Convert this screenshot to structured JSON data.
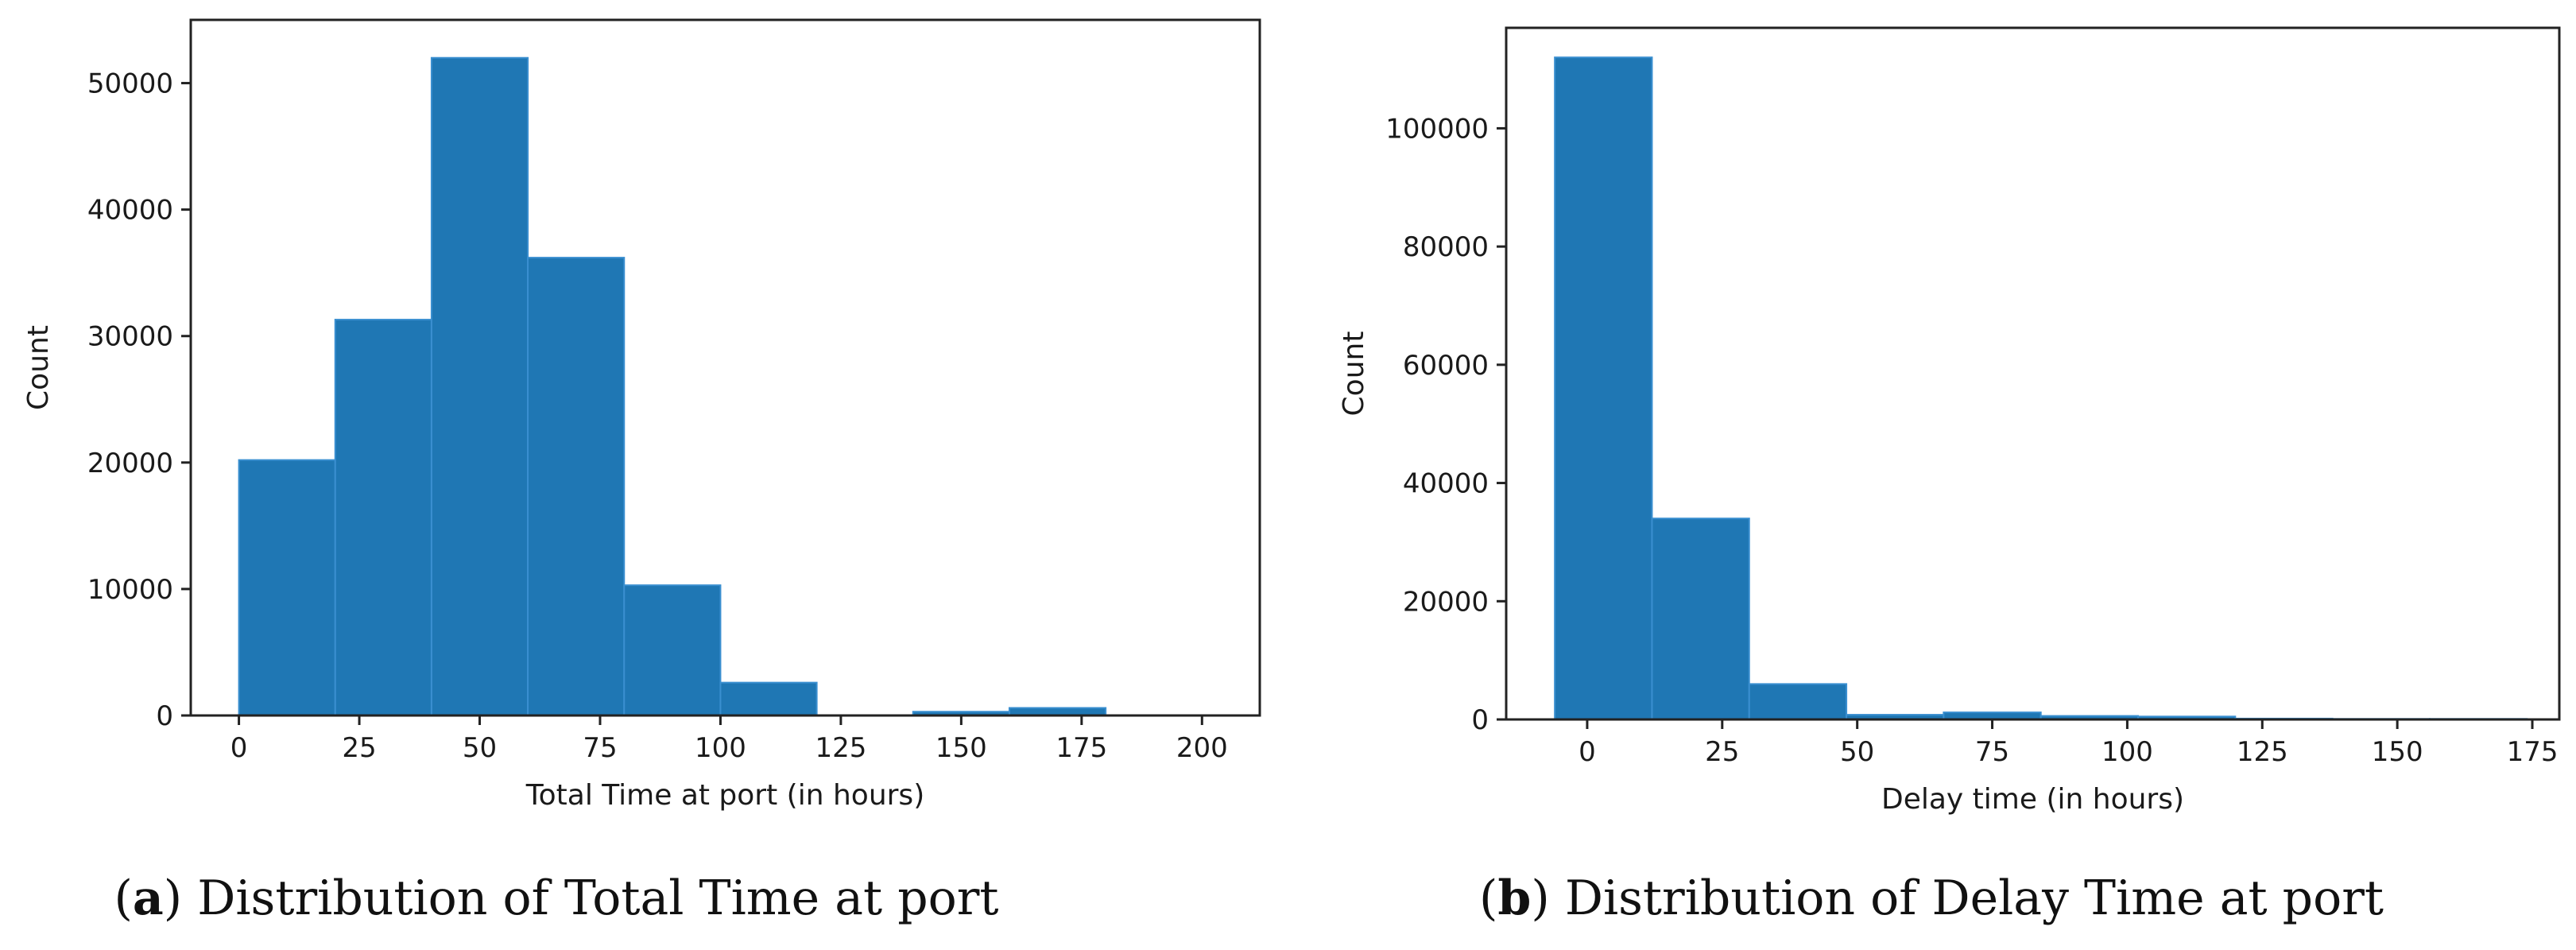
{
  "charts": [
    {
      "caption": {
        "prefix": "(",
        "letter": "a",
        "text": ") Distribution of Total Time at port"
      }
    },
    {
      "caption": {
        "prefix": "(",
        "letter": "b",
        "text": ") Distribution of Delay Time at port"
      }
    }
  ],
  "chart_data": [
    {
      "type": "bar",
      "subtype": "histogram",
      "xlabel": "Total Time at port (in hours)",
      "ylabel": "Count",
      "xlim": [
        -10,
        212
      ],
      "ylim": [
        0,
        55000
      ],
      "xticks": [
        0,
        25,
        50,
        75,
        100,
        125,
        150,
        175,
        200
      ],
      "yticks": [
        0,
        10000,
        20000,
        30000,
        40000,
        50000
      ],
      "bar_color": "#1f77b4",
      "bins": [
        {
          "x0": 0,
          "x1": 20,
          "count": 20200
        },
        {
          "x0": 20,
          "x1": 40,
          "count": 31300
        },
        {
          "x0": 40,
          "x1": 60,
          "count": 52000
        },
        {
          "x0": 60,
          "x1": 80,
          "count": 36200
        },
        {
          "x0": 80,
          "x1": 100,
          "count": 10300
        },
        {
          "x0": 100,
          "x1": 120,
          "count": 2600
        },
        {
          "x0": 120,
          "x1": 140,
          "count": 0
        },
        {
          "x0": 140,
          "x1": 160,
          "count": 300
        },
        {
          "x0": 160,
          "x1": 180,
          "count": 600
        },
        {
          "x0": 180,
          "x1": 200,
          "count": 0
        }
      ]
    },
    {
      "type": "bar",
      "subtype": "histogram",
      "xlabel": "Delay time (in hours)",
      "ylabel": "Count",
      "xlim": [
        -15,
        180
      ],
      "ylim": [
        0,
        117000
      ],
      "xticks": [
        0,
        25,
        50,
        75,
        100,
        125,
        150,
        175
      ],
      "yticks": [
        0,
        20000,
        40000,
        60000,
        80000,
        100000
      ],
      "bar_color": "#1f77b4",
      "bins": [
        {
          "x0": -6,
          "x1": 12,
          "count": 112000
        },
        {
          "x0": 12,
          "x1": 30,
          "count": 34000
        },
        {
          "x0": 30,
          "x1": 48,
          "count": 6000
        },
        {
          "x0": 48,
          "x1": 66,
          "count": 800
        },
        {
          "x0": 66,
          "x1": 84,
          "count": 1200
        },
        {
          "x0": 84,
          "x1": 102,
          "count": 600
        },
        {
          "x0": 102,
          "x1": 120,
          "count": 500
        },
        {
          "x0": 120,
          "x1": 138,
          "count": 150
        },
        {
          "x0": 138,
          "x1": 156,
          "count": 100
        },
        {
          "x0": 156,
          "x1": 174,
          "count": 100
        }
      ]
    }
  ]
}
